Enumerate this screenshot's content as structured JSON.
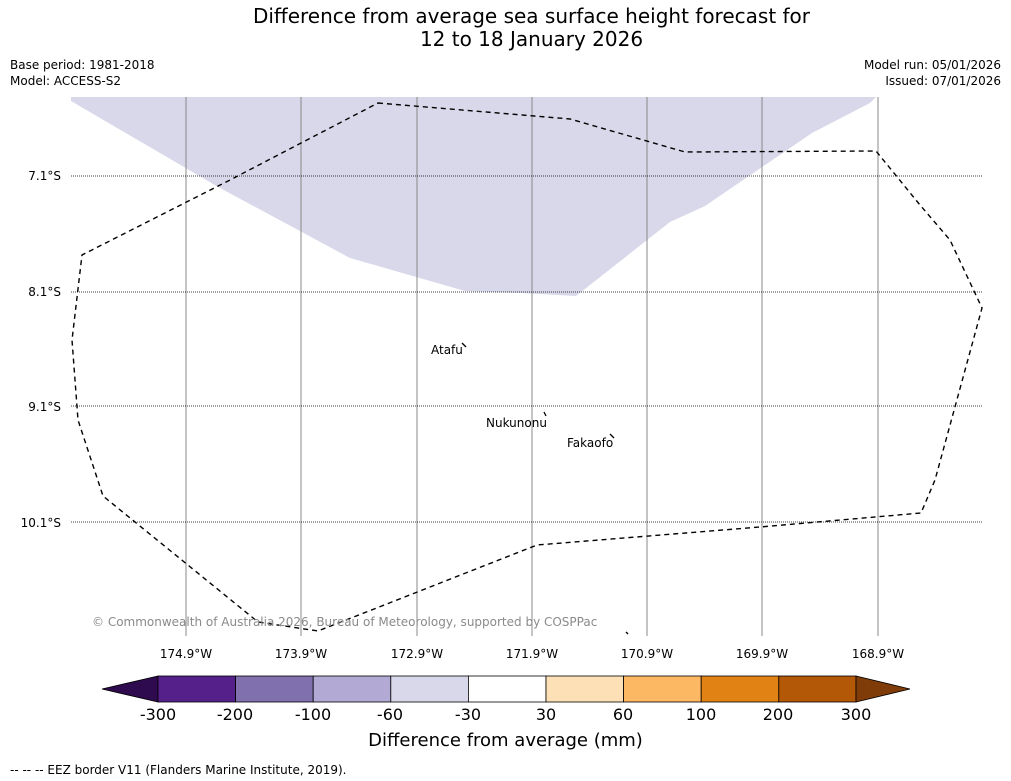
{
  "title": {
    "line1": "Difference from average sea surface height forecast for",
    "line2": "12 to 18 January 2026"
  },
  "meta": {
    "base_period": "Base period: 1981-2018",
    "model": "Model: ACCESS-S2",
    "model_run": "Model run: 05/01/2026",
    "issued": "Issued: 07/01/2026"
  },
  "axes": {
    "latitudes": [
      "7.1°S",
      "8.1°S",
      "9.1°S",
      "10.1°S"
    ],
    "longitudes": [
      "174.9°W",
      "173.9°W",
      "172.9°W",
      "171.9°W",
      "170.9°W",
      "169.9°W",
      "168.9°W"
    ]
  },
  "places": [
    "Atafu",
    "Nukunonu",
    "Fakaofo"
  ],
  "copyright": "© Commonwealth of Australia 2026, Bureau of Meteorology, supported by COSPPac",
  "colorbar": {
    "ticks": [
      "-300",
      "-200",
      "-100",
      "-60",
      "-30",
      "30",
      "60",
      "100",
      "200",
      "300"
    ],
    "colors": {
      "below_min": "#2d0b4e",
      "bin_1": "#55208a",
      "bin_2": "#8070ae",
      "bin_3": "#b2aad4",
      "bin_4": "#d8d8ea",
      "bin_5": "#ffffff",
      "bin_6": "#fee0b6",
      "bin_7": "#fdb863",
      "bin_8": "#e08214",
      "bin_9": "#b35806",
      "above_max": "#7f3b08"
    },
    "label": "Difference from average (mm)"
  },
  "legend_note": "--  --  -- EEZ border V11 (Flanders Marine Institute, 2019).",
  "anomaly_fill_color": "#d8d8ea"
}
